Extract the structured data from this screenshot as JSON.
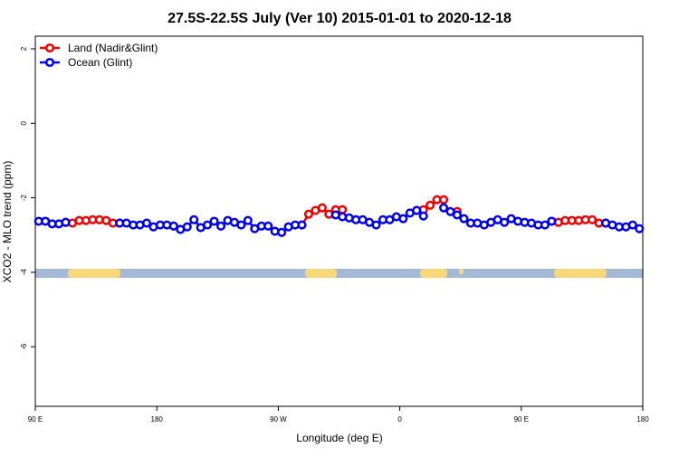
{
  "chart_data": {
    "type": "line",
    "title": "27.5S-22.5S July (Ver 10)   2015-01-01 to 2020-12-18",
    "x_label": "Longitude (deg E)",
    "y_label": "XCO2 - MLO trend (ppm)",
    "x": [
      92.5,
      97.5,
      102.5,
      107.5,
      112.5,
      117.5,
      122.5,
      127.5,
      132.5,
      137.5,
      142.5,
      147.5,
      152.5,
      157.5,
      162.5,
      167.5,
      172.5,
      177.5,
      182.5,
      187.5,
      192.5,
      197.5,
      202.5,
      207.5,
      212.5,
      217.5,
      222.5,
      227.5,
      232.5,
      237.5,
      242.5,
      247.5,
      252.5,
      257.5,
      262.5,
      267.5,
      272.5,
      277.5,
      282.5,
      287.5,
      292.5,
      297.5,
      302.5,
      307.5,
      312.5,
      317.5,
      322.5,
      327.5,
      332.5,
      337.5,
      342.5,
      347.5,
      352.5,
      357.5,
      362.5,
      367.5,
      372.5,
      377.5,
      382.5,
      387.5,
      392.5,
      397.5,
      402.5,
      407.5,
      412.5,
      417.5,
      422.5,
      427.5,
      432.5,
      437.5,
      442.5,
      447.5,
      452.5,
      457.5,
      462.5,
      467.5,
      472.5,
      477.5,
      482.5,
      487.5,
      492.5,
      497.5,
      502.5,
      507.5,
      512.5,
      517.5,
      522.5,
      527.5,
      532.5,
      537.5
    ],
    "series": [
      {
        "name": "Land (Nadir&Glint)",
        "color": "#ee0000",
        "values": [
          null,
          null,
          null,
          null,
          -2.66,
          -2.68,
          -2.61,
          -2.61,
          -2.59,
          -2.59,
          -2.61,
          -2.68,
          -2.68,
          null,
          null,
          null,
          null,
          null,
          null,
          null,
          null,
          null,
          null,
          null,
          null,
          null,
          null,
          null,
          null,
          null,
          null,
          null,
          null,
          null,
          null,
          null,
          null,
          null,
          null,
          -2.73,
          -2.44,
          -2.34,
          -2.27,
          -2.44,
          -2.32,
          -2.32,
          null,
          null,
          null,
          null,
          null,
          null,
          null,
          null,
          null,
          null,
          -2.34,
          -2.32,
          -2.2,
          -2.05,
          -2.05,
          null,
          -2.37,
          null,
          null,
          null,
          null,
          null,
          null,
          null,
          null,
          null,
          null,
          null,
          null,
          null,
          -2.63,
          -2.66,
          -2.61,
          -2.61,
          -2.61,
          -2.59,
          -2.59,
          -2.68,
          -2.68,
          null,
          null,
          null,
          null,
          null
        ]
      },
      {
        "name": "Ocean (Glint)",
        "color": "#0000ee",
        "values": [
          -2.63,
          -2.63,
          -2.7,
          -2.7,
          -2.66,
          null,
          null,
          null,
          null,
          null,
          null,
          null,
          -2.68,
          -2.68,
          -2.73,
          -2.73,
          -2.68,
          -2.78,
          -2.73,
          -2.73,
          -2.76,
          -2.85,
          -2.78,
          -2.59,
          -2.8,
          -2.73,
          -2.63,
          -2.76,
          -2.61,
          -2.66,
          -2.73,
          -2.61,
          -2.83,
          -2.76,
          -2.76,
          -2.9,
          -2.93,
          -2.78,
          -2.73,
          -2.73,
          null,
          null,
          null,
          null,
          -2.46,
          -2.51,
          -2.54,
          -2.59,
          -2.59,
          -2.66,
          -2.73,
          -2.59,
          -2.59,
          -2.51,
          -2.56,
          -2.41,
          -2.34,
          -2.49,
          null,
          null,
          -2.27,
          -2.37,
          -2.46,
          -2.56,
          -2.68,
          -2.68,
          -2.73,
          -2.66,
          -2.59,
          -2.66,
          -2.56,
          -2.63,
          -2.66,
          -2.68,
          -2.73,
          -2.73,
          -2.63,
          null,
          null,
          null,
          null,
          null,
          null,
          null,
          -2.68,
          -2.73,
          -2.78,
          -2.78,
          -2.73,
          -2.83
        ]
      }
    ],
    "xlim": [
      90,
      540
    ],
    "xticks": [
      {
        "value": 90,
        "label": "90 E"
      },
      180,
      {
        "value": 270,
        "label": "90 W"
      },
      {
        "value": 360,
        "label": "0"
      },
      {
        "value": 450,
        "label": "90 E"
      },
      {
        "value": 540,
        "label": "180"
      }
    ],
    "ylim": [
      -7.6,
      2.34
    ],
    "yticks": [
      -6,
      -4,
      -2,
      0,
      2
    ],
    "legend": "top-left"
  }
}
